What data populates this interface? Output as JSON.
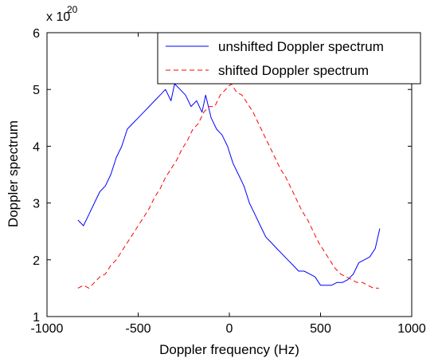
{
  "chart_data": {
    "type": "line",
    "xlabel": "Doppler frequency (Hz)",
    "ylabel": "Doppler spectrum",
    "scale_multiplier_base": "x 10",
    "scale_multiplier_exp": "20",
    "xlim": [
      -1000,
      1000
    ],
    "ylim": [
      1,
      6
    ],
    "xticks": [
      -1000,
      -500,
      0,
      500,
      1000
    ],
    "xtick_labels": [
      "-1000",
      "-500",
      "0",
      "500",
      "1000"
    ],
    "yticks": [
      1,
      2,
      3,
      4,
      5,
      6
    ],
    "ytick_labels": [
      "1",
      "2",
      "3",
      "4",
      "5",
      "6"
    ],
    "grid": false,
    "legend_position": "top-right",
    "series": [
      {
        "name": "unshifted Doppler spectrum",
        "color": "#0000ff",
        "dash": "solid",
        "x": [
          -830,
          -800,
          -770,
          -740,
          -710,
          -680,
          -650,
          -620,
          -590,
          -560,
          -530,
          -500,
          -470,
          -440,
          -410,
          -380,
          -350,
          -320,
          -300,
          -270,
          -240,
          -210,
          -180,
          -150,
          -130,
          -100,
          -70,
          -40,
          -10,
          20,
          50,
          80,
          110,
          140,
          170,
          200,
          230,
          260,
          290,
          320,
          350,
          380,
          410,
          440,
          470,
          500,
          530,
          560,
          590,
          620,
          650,
          680,
          710,
          740,
          770,
          800,
          825
        ],
        "y": [
          2.7,
          2.6,
          2.8,
          3.0,
          3.2,
          3.3,
          3.5,
          3.8,
          4.0,
          4.3,
          4.4,
          4.5,
          4.6,
          4.7,
          4.8,
          4.9,
          5.0,
          4.8,
          5.1,
          5.0,
          4.9,
          4.7,
          4.8,
          4.6,
          4.9,
          4.5,
          4.3,
          4.2,
          4.0,
          3.7,
          3.5,
          3.3,
          3.0,
          2.8,
          2.6,
          2.4,
          2.3,
          2.2,
          2.1,
          2.0,
          1.9,
          1.8,
          1.8,
          1.75,
          1.7,
          1.55,
          1.55,
          1.55,
          1.6,
          1.6,
          1.65,
          1.75,
          1.95,
          2.0,
          2.05,
          2.2,
          2.55
        ]
      },
      {
        "name": "shifted Doppler spectrum",
        "color": "#ff0000",
        "dash": "dashed",
        "x": [
          -830,
          -800,
          -770,
          -740,
          -710,
          -680,
          -650,
          -620,
          -590,
          -560,
          -530,
          -500,
          -470,
          -440,
          -410,
          -380,
          -350,
          -320,
          -290,
          -260,
          -230,
          -200,
          -170,
          -140,
          -110,
          -80,
          -50,
          -20,
          10,
          40,
          70,
          100,
          130,
          160,
          190,
          220,
          250,
          280,
          310,
          340,
          370,
          400,
          430,
          460,
          490,
          520,
          550,
          580,
          610,
          640,
          670,
          700,
          730,
          760,
          790,
          820
        ],
        "y": [
          1.5,
          1.55,
          1.5,
          1.6,
          1.7,
          1.75,
          1.9,
          2.0,
          2.15,
          2.3,
          2.45,
          2.6,
          2.75,
          2.9,
          3.1,
          3.25,
          3.45,
          3.6,
          3.75,
          3.95,
          4.1,
          4.3,
          4.4,
          4.6,
          4.7,
          4.7,
          4.9,
          5.0,
          5.1,
          4.95,
          4.9,
          4.75,
          4.6,
          4.4,
          4.2,
          4.0,
          3.8,
          3.6,
          3.45,
          3.25,
          3.05,
          2.85,
          2.7,
          2.5,
          2.3,
          2.15,
          2.0,
          1.85,
          1.75,
          1.7,
          1.65,
          1.6,
          1.6,
          1.55,
          1.5,
          1.5
        ]
      }
    ]
  }
}
